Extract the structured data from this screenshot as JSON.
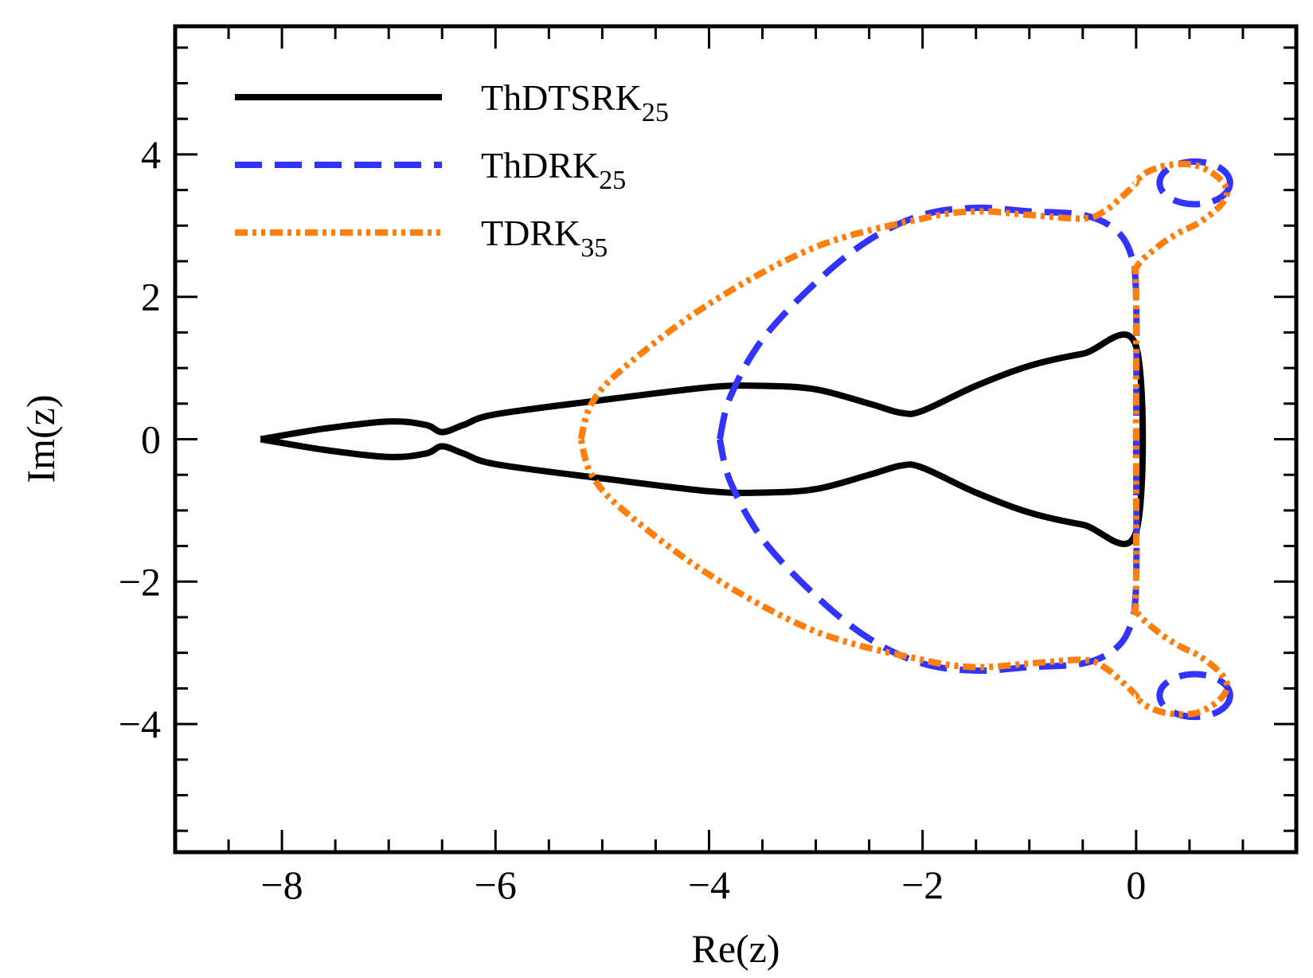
{
  "chart_data": {
    "type": "line",
    "title": "",
    "xlabel": "Re(z)",
    "ylabel": "Im(z)",
    "xlim": [
      -9.0,
      1.5
    ],
    "ylim": [
      -5.8,
      5.8
    ],
    "xticks": [
      -8,
      -6,
      -4,
      -2,
      0
    ],
    "xtick_labels": [
      "−8",
      "−6",
      "−4",
      "−2",
      "0"
    ],
    "yticks": [
      -4,
      -2,
      0,
      2,
      4
    ],
    "ytick_labels": [
      "−4",
      "−2",
      "0",
      "2",
      "4"
    ],
    "x_minor_step": 0.5,
    "y_minor_step": 0.5,
    "grid": false,
    "legend_position": "top-left",
    "series": [
      {
        "name": "ThDTSRK",
        "subscript": "25",
        "color": "#000000",
        "style": "solid",
        "x": [
          -8.2,
          -7.6,
          -7.0,
          -6.65,
          -6.5,
          -6.3,
          -6.0,
          -5.0,
          -4.0,
          -3.5,
          -3.0,
          -2.5,
          -2.2,
          -2.0,
          -1.5,
          -1.0,
          -0.5,
          0.0,
          0.0,
          -0.5,
          -1.0,
          -1.5,
          -2.0,
          -2.2,
          -2.5,
          -3.0,
          -3.5,
          -4.0,
          -5.0,
          -6.0,
          -6.3,
          -6.5,
          -6.65,
          -7.0,
          -7.6,
          -8.2
        ],
        "y": [
          0.0,
          0.15,
          0.25,
          0.2,
          0.1,
          0.2,
          0.35,
          0.55,
          0.73,
          0.75,
          0.7,
          0.5,
          0.37,
          0.4,
          0.75,
          1.03,
          1.2,
          1.3,
          -1.3,
          -1.2,
          -1.03,
          -0.75,
          -0.4,
          -0.37,
          -0.5,
          -0.7,
          -0.75,
          -0.73,
          -0.55,
          -0.35,
          -0.2,
          -0.1,
          -0.2,
          -0.25,
          -0.15,
          0.0
        ]
      },
      {
        "name": "ThDRK",
        "subscript": "25",
        "color": "#3333ff",
        "style": "dashed",
        "x": [
          -3.9,
          -3.8,
          -3.5,
          -3.0,
          -2.5,
          -2.0,
          -1.5,
          -1.0,
          -0.5,
          -0.2,
          -0.05,
          0.0,
          0.0,
          0.0,
          -0.05,
          -0.2,
          -0.5,
          -1.0,
          -1.5,
          -2.0,
          -2.5,
          -3.0,
          -3.5,
          -3.8,
          -3.9
        ],
        "y": [
          0.0,
          0.6,
          1.4,
          2.2,
          2.8,
          3.15,
          3.25,
          3.2,
          3.15,
          2.95,
          2.6,
          2.0,
          0.0,
          -2.0,
          -2.6,
          -2.95,
          -3.15,
          -3.2,
          -3.25,
          -3.15,
          -2.8,
          -2.2,
          -1.4,
          -0.6,
          0.0
        ],
        "loops": [
          {
            "cx": 0.55,
            "cy": 3.6,
            "rx": 0.33,
            "ry": 0.3
          },
          {
            "cx": 0.55,
            "cy": -3.6,
            "rx": 0.33,
            "ry": 0.3
          }
        ]
      },
      {
        "name": "TDRK",
        "subscript": "35",
        "color": "#ff7f0e",
        "style": "dashdotdot",
        "x": [
          -5.2,
          -5.1,
          -4.8,
          -4.0,
          -3.0,
          -2.0,
          -1.5,
          -1.0,
          -0.5,
          -0.3,
          -0.1,
          0.0,
          0.0,
          0.1,
          0.3,
          0.55,
          0.75,
          0.85,
          0.8,
          0.6,
          0.4,
          0.2,
          0.0,
          0.0,
          0.0,
          0.0,
          0.2,
          0.4,
          0.6,
          0.8,
          0.85,
          0.75,
          0.55,
          0.3,
          0.1,
          0.0,
          0.0,
          -0.1,
          -0.3,
          -0.5,
          -1.0,
          -1.5,
          -2.0,
          -3.0,
          -4.0,
          -4.8,
          -5.1,
          -5.2
        ],
        "y": [
          0.0,
          0.5,
          1.0,
          1.9,
          2.7,
          3.1,
          3.2,
          3.15,
          3.1,
          3.2,
          3.45,
          3.6,
          3.62,
          3.75,
          3.85,
          3.85,
          3.7,
          3.5,
          3.3,
          3.05,
          2.9,
          2.7,
          2.4,
          2.0,
          -2.0,
          -2.4,
          -2.7,
          -2.9,
          -3.05,
          -3.3,
          -3.5,
          -3.7,
          -3.85,
          -3.85,
          -3.75,
          -3.62,
          -3.6,
          -3.45,
          -3.2,
          -3.1,
          -3.15,
          -3.2,
          -3.1,
          -2.7,
          -1.9,
          -1.0,
          -0.5,
          0.0
        ]
      }
    ]
  }
}
